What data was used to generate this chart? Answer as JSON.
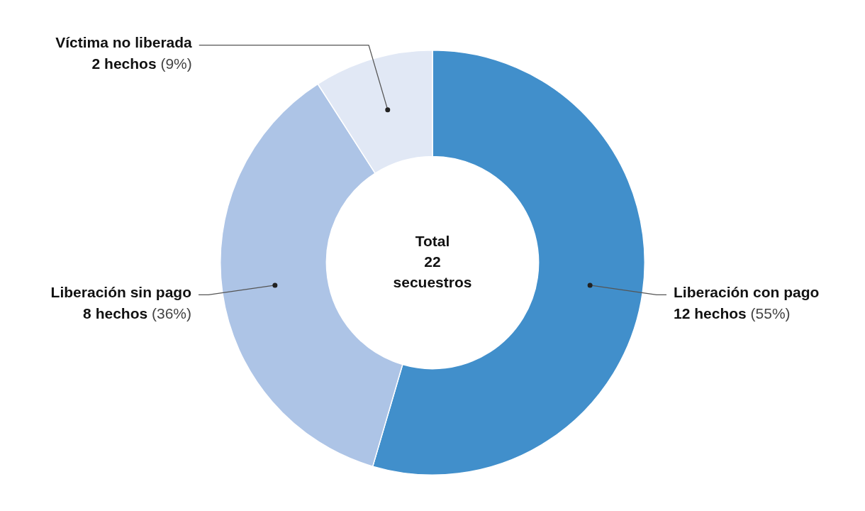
{
  "chart_data": {
    "type": "donut",
    "categories": [
      "Liberación con pago",
      "Liberación sin pago",
      "Víctima no liberada"
    ],
    "values": [
      12,
      8,
      2
    ],
    "colors": [
      "#418fcb",
      "#adc4e6",
      "#e1e8f5"
    ],
    "value_labels": [
      "12 hechos (55%)",
      "8 hechos (36%)",
      "2 hechos (9%)"
    ],
    "annotations": [
      "Total 22 secuestros"
    ],
    "legend": false
  }
}
